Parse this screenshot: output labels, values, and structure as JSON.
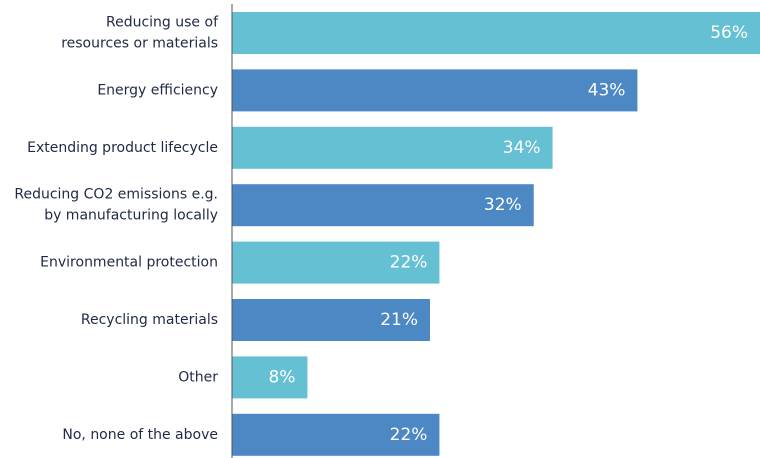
{
  "chart_data": {
    "type": "bar",
    "orientation": "horizontal",
    "categories": [
      "Reducing use of\nresources or materials",
      "Energy efficiency",
      "Extending product lifecycle",
      "Reducing CO2 emissions e.g.\nby manufacturing locally",
      "Environmental protection",
      "Recycling materials",
      "Other",
      "No, none of the above"
    ],
    "values": [
      56,
      43,
      34,
      32,
      22,
      21,
      8,
      22
    ],
    "value_labels": [
      "56%",
      "43%",
      "34%",
      "32%",
      "22%",
      "21%",
      "8%",
      "22%"
    ],
    "unit": "%",
    "xlim": [
      0,
      56
    ],
    "grid": false,
    "legend": "none",
    "bar_colors": [
      "#65c0d4",
      "#4c88c4"
    ],
    "label_color": "#1f2a44",
    "axis_color": "#555555"
  }
}
